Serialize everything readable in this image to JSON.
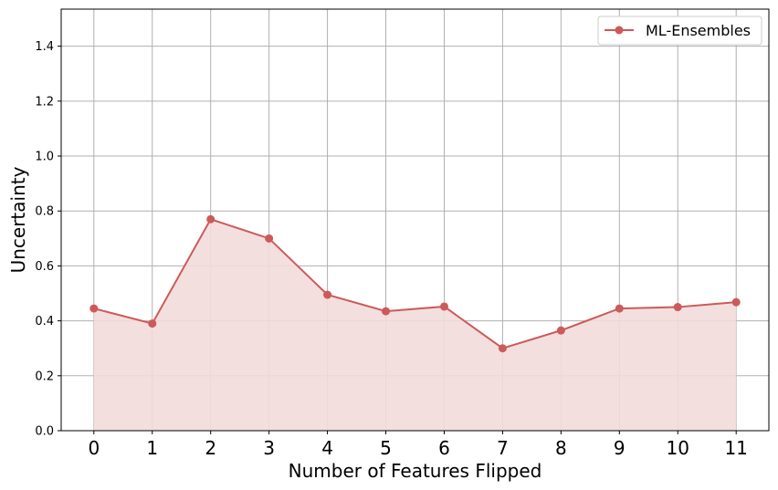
{
  "chart_data": {
    "type": "line",
    "title": "",
    "xlabel": "Number of Features Flipped",
    "ylabel": "Uncertainty",
    "x": [
      0,
      1,
      2,
      3,
      4,
      5,
      6,
      7,
      8,
      9,
      10,
      11
    ],
    "series": [
      {
        "name": "ML-Ensembles",
        "values": [
          0.445,
          0.39,
          0.77,
          0.7,
          0.495,
          0.435,
          0.452,
          0.3,
          0.365,
          0.445,
          0.45,
          0.468
        ],
        "color": "#cd5a5a",
        "fill": true,
        "marker": "circle"
      }
    ],
    "xlim": [
      -0.56,
      11.56
    ],
    "ylim": [
      0,
      1.535
    ],
    "yticks": [
      0.0,
      0.2,
      0.4,
      0.6,
      0.8,
      1.0,
      1.2,
      1.4
    ],
    "ytick_labels": [
      "0.0",
      "0.2",
      "0.4",
      "0.6",
      "0.8",
      "1.0",
      "1.2",
      "1.4"
    ],
    "xtick_labels": [
      "0",
      "1",
      "2",
      "3",
      "4",
      "5",
      "6",
      "7",
      "8",
      "9",
      "10",
      "11"
    ],
    "grid": true,
    "legend_position": "top-right",
    "colors": {
      "grid": "#b0b0b0",
      "line": "#cd5a5a",
      "fill": "#f3dcdc"
    }
  }
}
